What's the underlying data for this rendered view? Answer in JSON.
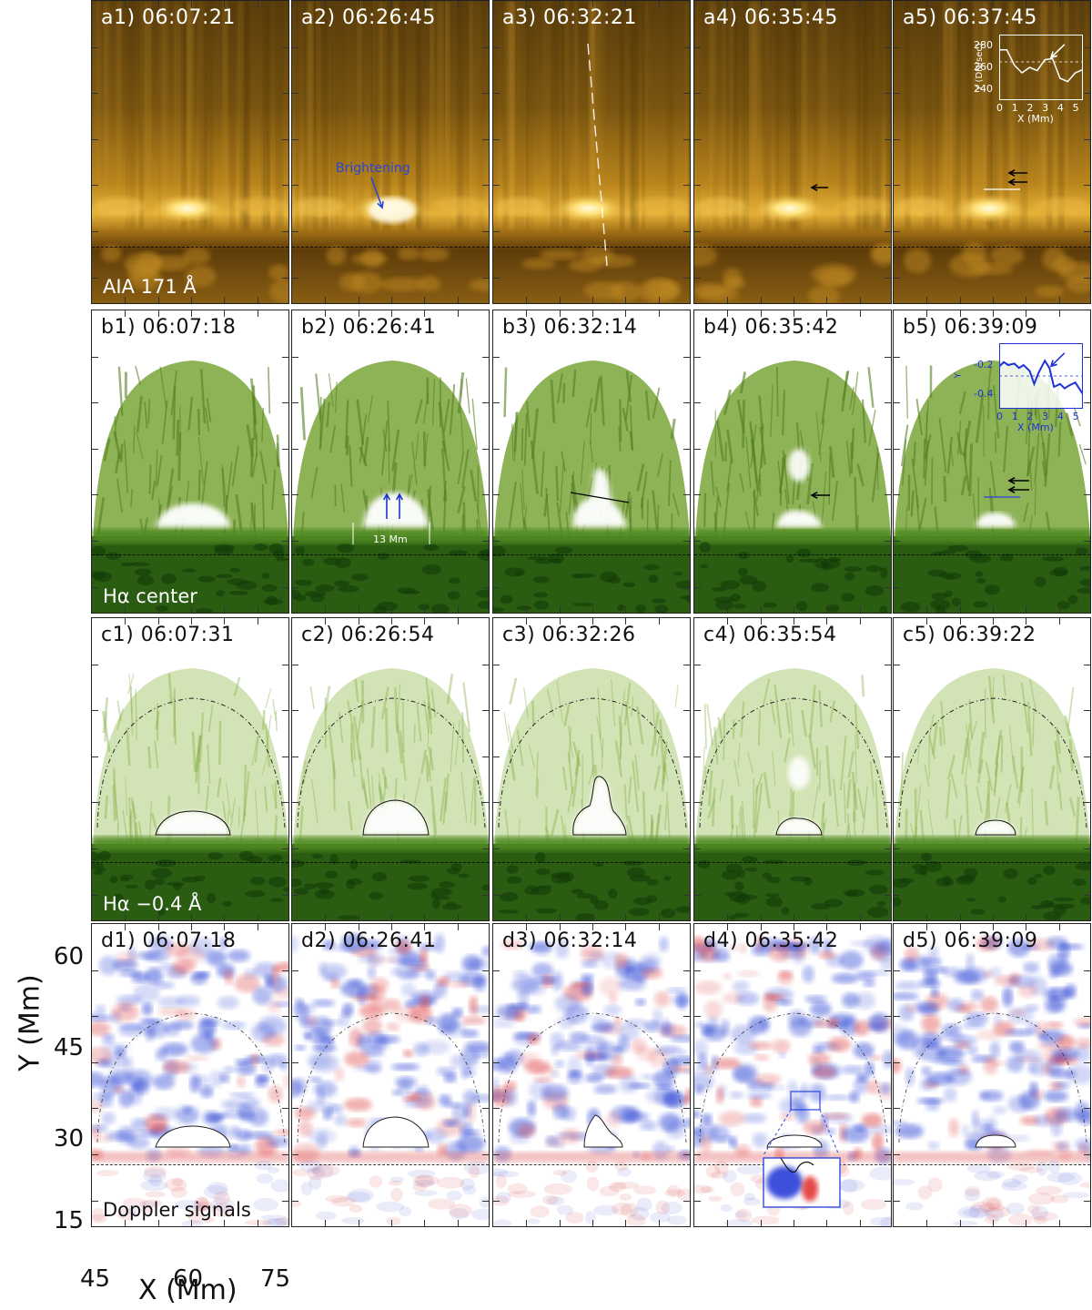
{
  "rows": {
    "a": {
      "label": "AIA 171 Å",
      "panels": [
        "a1) 06:07:21",
        "a2) 06:26:45",
        "a3) 06:32:21",
        "a4) 06:35:45",
        "a5) 06:37:45"
      ]
    },
    "b": {
      "label": "Hα center",
      "panels": [
        "b1) 06:07:18",
        "b2) 06:26:41",
        "b3) 06:32:14",
        "b4) 06:35:42",
        "b5) 06:39:09"
      ]
    },
    "c": {
      "label": "Hα −0.4 Å",
      "panels": [
        "c1) 06:07:31",
        "c2) 06:26:54",
        "c3) 06:32:26",
        "c4) 06:35:54",
        "c5) 06:39:22"
      ]
    },
    "d": {
      "label": "Doppler signals",
      "panels": [
        "d1) 06:07:18",
        "d2) 06:26:41",
        "d3) 06:32:14",
        "d4) 06:35:42",
        "d5) 06:39:09"
      ]
    }
  },
  "annotations": {
    "brightening": "Brightening",
    "width": "13 Mm"
  },
  "axes": {
    "x_title": "X (Mm)",
    "y_title": "Y (Mm)",
    "x_ticks": [
      "45",
      "60",
      "75"
    ],
    "y_ticks": [
      "60",
      "45",
      "30",
      "15"
    ]
  },
  "inset_a5": {
    "ylabel": "Y (DN/sec)",
    "xlabel": "X (Mm)",
    "y_ticks": [
      "280",
      "260",
      "240"
    ],
    "x_ticks": [
      "0",
      "1",
      "2",
      "3",
      "4",
      "5"
    ],
    "ylim": [
      230,
      290
    ],
    "xlim": [
      0,
      5.5
    ],
    "x": [
      0,
      0.5,
      1,
      1.5,
      2,
      2.5,
      3,
      3.5,
      4,
      4.5,
      5,
      5.5
    ],
    "y": [
      276,
      276,
      262,
      255,
      260,
      257,
      267,
      268,
      250,
      247,
      255,
      258
    ],
    "color": "#ffffff"
  },
  "inset_b5": {
    "ylabel": "Y",
    "xlabel": "X (Mm)",
    "y_ticks": [
      "-0.2",
      "-0.4"
    ],
    "x_ticks": [
      "0",
      "1",
      "2",
      "3",
      "4",
      "5"
    ],
    "ylim": [
      -0.5,
      -0.05
    ],
    "xlim": [
      0,
      5.5
    ],
    "x": [
      0,
      0.3,
      0.6,
      1,
      1.3,
      1.6,
      2,
      2.3,
      2.6,
      3,
      3.3,
      3.6,
      4,
      4.3,
      4.6,
      5,
      5.5
    ],
    "y": [
      -0.21,
      -0.18,
      -0.2,
      -0.19,
      -0.22,
      -0.2,
      -0.24,
      -0.33,
      -0.25,
      -0.17,
      -0.22,
      -0.35,
      -0.33,
      -0.36,
      -0.34,
      -0.32,
      -0.4
    ],
    "color": "#1e33d6"
  },
  "colors": {
    "aia": "#a8791c",
    "ha": "#6e9a22",
    "ha_dark": "#1f4a0d",
    "blue": "#2a3fd8",
    "red": "#e03030"
  }
}
